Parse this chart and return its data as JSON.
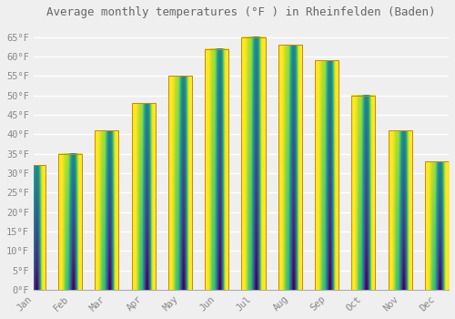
{
  "title": "Average monthly temperatures (°F ) in Rheinfelden (Baden)",
  "months": [
    "Jan",
    "Feb",
    "Mar",
    "Apr",
    "May",
    "Jun",
    "Jul",
    "Aug",
    "Sep",
    "Oct",
    "Nov",
    "Dec"
  ],
  "values": [
    32,
    35,
    41,
    48,
    55,
    62,
    65,
    63,
    59,
    50,
    41,
    33
  ],
  "bar_color_bottom": "#FFB300",
  "bar_color_top": "#FFA500",
  "bar_edge_color": "#CC8800",
  "background_color": "#EFEFEF",
  "grid_color": "#FFFFFF",
  "tick_label_color": "#888888",
  "title_color": "#666666",
  "ylim": [
    0,
    68
  ],
  "yticks": [
    0,
    5,
    10,
    15,
    20,
    25,
    30,
    35,
    40,
    45,
    50,
    55,
    60,
    65
  ],
  "ytick_labels": [
    "0°F",
    "5°F",
    "10°F",
    "15°F",
    "20°F",
    "25°F",
    "30°F",
    "35°F",
    "40°F",
    "45°F",
    "50°F",
    "55°F",
    "60°F",
    "65°F"
  ],
  "title_fontsize": 9,
  "tick_fontsize": 7.5
}
